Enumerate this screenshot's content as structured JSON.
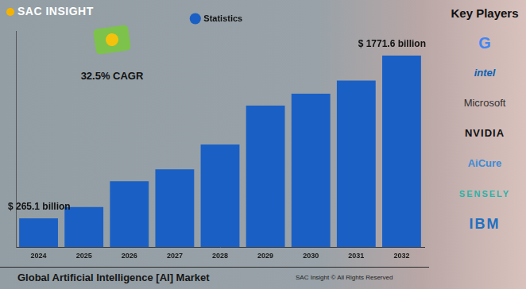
{
  "brand": "SAC INSIGHT",
  "badge": "32.5% CAGR",
  "key_players": {
    "title": "Key Players",
    "names": [
      "G",
      "intel",
      "Microsoft",
      "NVIDIA",
      "AiCure",
      "SENSELY",
      "IBM"
    ]
  },
  "footer": "SAC Insight © All Rights Reserved",
  "chart_data": {
    "type": "bar",
    "title": "Global Artificial Intelligence [AI] Market",
    "categories": [
      "2024",
      "2025",
      "2026",
      "2027",
      "2028",
      "2029",
      "2030",
      "2031",
      "2032"
    ],
    "series": [
      {
        "name": "Statistics",
        "color": "#1a5fc4",
        "values": [
          265.1,
          370,
          610,
          720,
          950,
          1310,
          1420,
          1540,
          1771.6
        ]
      }
    ],
    "annotations": [
      {
        "text": "$ 265.1 billion",
        "category": "2024"
      },
      {
        "text": "$ 1771.6 billion",
        "category": "2032"
      }
    ],
    "ylim": [
      0,
      2000
    ],
    "grid": false,
    "legend": "top",
    "tick_labels": "x"
  }
}
